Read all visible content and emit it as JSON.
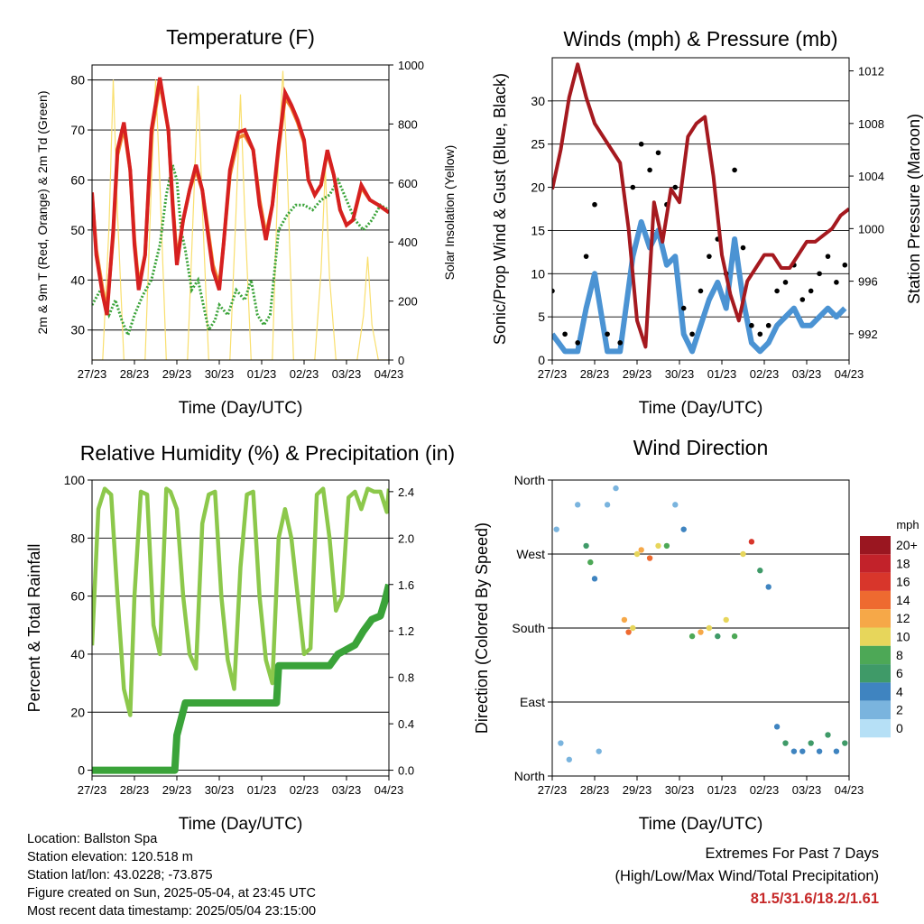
{
  "x_ticks": [
    "27/23",
    "28/23",
    "29/23",
    "30/23",
    "01/23",
    "02/23",
    "03/23",
    "04/23"
  ],
  "colors": {
    "temp_red": "#d62020",
    "temp_orange": "#f0892e",
    "dewpoint_green": "#3aa339",
    "solar_yellow": "#f9df6e",
    "wind_black": "#000000",
    "wind_blue": "#4b93d3",
    "pressure_maroon": "#a5191f",
    "rh_lightgreen": "#8cc84b",
    "rain_green": "#3aa339"
  },
  "chart_data": [
    {
      "type": "line",
      "title": "Temperature (F)",
      "xlabel": "Time (Day/UTC)",
      "ylabel": "2m & 9m T (Red, Orange) & 2m Td (Green)",
      "y2label": "Solar Insolation (Yellow)",
      "ylim": [
        24,
        83
      ],
      "yticks": [
        "30",
        "40",
        "50",
        "60",
        "70",
        "80"
      ],
      "y2lim": [
        0,
        1000
      ],
      "y2ticks": [
        "0",
        "200",
        "400",
        "600",
        "800",
        "1000"
      ],
      "grid": true,
      "series": [
        {
          "name": "2m T",
          "color": "#d62020",
          "x": [
            0,
            0.1,
            0.25,
            0.35,
            0.5,
            0.6,
            0.75,
            0.9,
            1.0,
            1.1,
            1.25,
            1.4,
            1.6,
            1.8,
            1.9,
            2.0,
            2.15,
            2.3,
            2.45,
            2.6,
            2.75,
            2.85,
            3.0,
            3.1,
            3.25,
            3.45,
            3.6,
            3.8,
            3.95,
            4.1,
            4.25,
            4.4,
            4.55,
            4.7,
            4.85,
            5.0,
            5.1,
            5.25,
            5.4,
            5.55,
            5.7,
            5.85,
            6.0,
            6.15,
            6.35,
            6.55,
            6.75,
            7.0
          ],
          "y": [
            57.5,
            45,
            37,
            33,
            50,
            66,
            71.5,
            62,
            47,
            38,
            45,
            70,
            80.5,
            70,
            55,
            43,
            52,
            58,
            63,
            58,
            48,
            42,
            38,
            47,
            62,
            69.5,
            70,
            66,
            55,
            48,
            55,
            67,
            77.5,
            75,
            72,
            68,
            60,
            57,
            59,
            66,
            61,
            54,
            51,
            52,
            59,
            56,
            55,
            53.5
          ]
        },
        {
          "name": "9m T",
          "color": "#f0892e",
          "x": [
            0,
            0.1,
            0.25,
            0.35,
            0.5,
            0.6,
            0.75,
            0.9,
            1.0,
            1.1,
            1.25,
            1.4,
            1.6,
            1.8,
            1.9,
            2.0,
            2.15,
            2.3,
            2.45,
            2.6,
            2.75,
            2.85,
            3.0,
            3.1,
            3.25,
            3.45,
            3.6,
            3.8,
            3.95,
            4.1,
            4.25,
            4.4,
            4.55,
            4.7,
            4.85,
            5.0,
            5.1,
            5.25,
            5.4,
            5.55,
            5.7,
            5.85,
            6.0,
            6.15,
            6.35,
            6.55,
            6.75,
            7.0
          ],
          "y": [
            57,
            46,
            38,
            34,
            49,
            65,
            70.5,
            62,
            48,
            39,
            45,
            69,
            79.5,
            70,
            56,
            44,
            52,
            58,
            62,
            58,
            49,
            43,
            39,
            47,
            61,
            68.5,
            69,
            66,
            56,
            49,
            55,
            66,
            76.5,
            74.5,
            71.5,
            67.5,
            60,
            57,
            59,
            65.5,
            61,
            54,
            51,
            52,
            58.5,
            56,
            55,
            53.5
          ]
        },
        {
          "name": "2m Td",
          "color": "#3aa339",
          "x": [
            0,
            0.2,
            0.4,
            0.55,
            0.7,
            0.85,
            1.0,
            1.2,
            1.4,
            1.6,
            1.75,
            1.9,
            2.0,
            2.1,
            2.2,
            2.35,
            2.5,
            2.6,
            2.75,
            2.9,
            3.0,
            3.2,
            3.4,
            3.6,
            3.75,
            3.9,
            4.05,
            4.2,
            4.4,
            4.6,
            4.8,
            5.0,
            5.2,
            5.4,
            5.6,
            5.8,
            6.0,
            6.2,
            6.4,
            6.6,
            6.8,
            7.0
          ],
          "y": [
            35,
            38,
            33,
            36,
            32,
            29,
            33,
            37,
            40,
            47,
            57,
            63,
            60,
            50,
            46,
            38,
            40,
            36,
            30,
            32,
            35,
            33,
            38,
            36,
            40,
            33,
            31,
            33,
            50,
            53,
            55,
            55,
            54,
            56,
            57,
            60,
            56,
            52,
            50,
            52,
            55,
            54
          ]
        },
        {
          "name": "Solar Insolation",
          "color": "#f9df6e",
          "axis": "y2",
          "x": [
            0,
            0.25,
            0.4,
            0.5,
            0.6,
            0.75,
            0.9,
            1.0,
            1.25,
            1.4,
            1.5,
            1.6,
            1.75,
            1.9,
            2.0,
            2.25,
            2.4,
            2.5,
            2.6,
            2.75,
            2.9,
            3.0,
            3.25,
            3.4,
            3.5,
            3.6,
            3.75,
            3.9,
            4.0,
            4.25,
            4.4,
            4.5,
            4.6,
            4.75,
            4.9,
            5.0,
            5.25,
            5.4,
            5.5,
            5.6,
            5.75,
            5.9,
            6.0,
            6.25,
            6.4,
            6.5,
            6.6,
            6.75,
            6.9,
            7.0
          ],
          "y": [
            0,
            0,
            450,
            950,
            500,
            0,
            0,
            0,
            0,
            600,
            950,
            600,
            0,
            0,
            0,
            0,
            550,
            930,
            520,
            0,
            0,
            0,
            0,
            520,
            900,
            500,
            0,
            0,
            0,
            0,
            700,
            980,
            650,
            0,
            0,
            0,
            0,
            300,
            650,
            280,
            0,
            0,
            0,
            0,
            150,
            350,
            120,
            0,
            0,
            0
          ]
        }
      ]
    },
    {
      "type": "scatter",
      "title": "Winds (mph) & Pressure (mb)",
      "xlabel": "Time (Day/UTC)",
      "ylabel": "Sonic/Prop Wind & Gust (Blue, Black)",
      "y2label": "Station Pressure (Maroon)",
      "ylim": [
        0,
        35
      ],
      "yticks": [
        "0",
        "5",
        "10",
        "15",
        "20",
        "25",
        "30"
      ],
      "y2lim": [
        990,
        1013
      ],
      "y2ticks": [
        "992",
        "996",
        "1000",
        "1004",
        "1008",
        "1012"
      ],
      "grid": true,
      "series": [
        {
          "name": "Gust",
          "color": "#000000",
          "x": [
            0,
            0.3,
            0.6,
            0.8,
            1.0,
            1.3,
            1.6,
            1.9,
            2.1,
            2.3,
            2.5,
            2.7,
            2.9,
            3.1,
            3.3,
            3.5,
            3.7,
            3.9,
            4.1,
            4.3,
            4.5,
            4.7,
            4.9,
            5.1,
            5.3,
            5.5,
            5.7,
            5.9,
            6.1,
            6.3,
            6.5,
            6.7,
            6.9
          ],
          "y": [
            8,
            3,
            2,
            12,
            18,
            3,
            2,
            20,
            25,
            22,
            24,
            18,
            20,
            6,
            3,
            8,
            12,
            14,
            10,
            22,
            13,
            4,
            3,
            4,
            8,
            9,
            11,
            7,
            8,
            10,
            12,
            9,
            11
          ]
        },
        {
          "name": "Sonic/Prop Wind",
          "color": "#4b93d3",
          "x": [
            0,
            0.3,
            0.6,
            0.8,
            1.0,
            1.3,
            1.6,
            1.9,
            2.1,
            2.3,
            2.5,
            2.7,
            2.9,
            3.1,
            3.3,
            3.5,
            3.7,
            3.9,
            4.1,
            4.3,
            4.5,
            4.7,
            4.9,
            5.1,
            5.3,
            5.5,
            5.7,
            5.9,
            6.1,
            6.3,
            6.5,
            6.7,
            6.9
          ],
          "y": [
            3,
            1,
            1,
            6,
            10,
            1,
            1,
            12,
            16,
            13,
            15,
            11,
            12,
            3,
            1,
            4,
            7,
            9,
            6,
            14,
            7,
            2,
            1,
            2,
            4,
            5,
            6,
            4,
            4,
            5,
            6,
            5,
            6
          ]
        },
        {
          "name": "Station Pressure",
          "color": "#a5191f",
          "axis": "y2",
          "x": [
            0,
            0.2,
            0.4,
            0.6,
            0.8,
            1.0,
            1.2,
            1.4,
            1.6,
            1.8,
            2.0,
            2.2,
            2.4,
            2.6,
            2.8,
            3.0,
            3.2,
            3.4,
            3.6,
            3.8,
            4.0,
            4.2,
            4.4,
            4.6,
            4.8,
            5.0,
            5.2,
            5.4,
            5.6,
            5.8,
            6.0,
            6.2,
            6.4,
            6.6,
            6.8,
            7.0
          ],
          "y": [
            1003,
            1006,
            1010,
            1012.5,
            1010,
            1008,
            1007,
            1006,
            1005,
            1000,
            993,
            991,
            1002,
            999,
            1003,
            1002,
            1007,
            1008,
            1008.5,
            1004,
            998,
            995,
            993,
            996,
            997,
            998,
            998,
            997,
            997,
            998,
            999,
            999,
            999.5,
            1000,
            1001,
            1001.5
          ]
        }
      ]
    },
    {
      "type": "line",
      "title": "Relative Humidity (%) & Precipitation (in)",
      "xlabel": "Time (Day/UTC)",
      "ylabel": "Percent & Total Rainfall",
      "ylim": [
        -2,
        100
      ],
      "yticks": [
        "0",
        "20",
        "40",
        "60",
        "80",
        "100"
      ],
      "y2lim": [
        -0.05,
        2.5
      ],
      "y2ticks": [
        "0.0",
        "0.4",
        "0.8",
        "1.2",
        "1.6",
        "2.0",
        "2.4"
      ],
      "grid": true,
      "series": [
        {
          "name": "Relative Humidity",
          "color": "#8cc84b",
          "x": [
            0,
            0.15,
            0.3,
            0.45,
            0.6,
            0.75,
            0.9,
            1.0,
            1.15,
            1.3,
            1.45,
            1.6,
            1.75,
            1.85,
            2.0,
            2.15,
            2.3,
            2.45,
            2.6,
            2.75,
            2.9,
            3.05,
            3.2,
            3.35,
            3.5,
            3.65,
            3.8,
            3.95,
            4.1,
            4.25,
            4.4,
            4.55,
            4.7,
            4.85,
            5.0,
            5.15,
            5.3,
            5.45,
            5.6,
            5.75,
            5.9,
            6.05,
            6.2,
            6.35,
            6.5,
            6.65,
            6.8,
            6.95,
            7.0
          ],
          "y": [
            43,
            90,
            97,
            95,
            60,
            28,
            19,
            60,
            96,
            95,
            50,
            40,
            97,
            96,
            90,
            60,
            40,
            35,
            85,
            95,
            96,
            60,
            38,
            28,
            70,
            95,
            96,
            60,
            38,
            30,
            80,
            90,
            80,
            60,
            40,
            42,
            95,
            97,
            80,
            55,
            60,
            94,
            96,
            90,
            97,
            96,
            96,
            89,
            97
          ]
        },
        {
          "name": "Total Precipitation",
          "color": "#3aa339",
          "axis": "y2",
          "x": [
            0,
            1.95,
            2.0,
            2.2,
            3.5,
            4.35,
            4.4,
            5.6,
            5.8,
            6.2,
            6.4,
            6.6,
            6.8,
            6.9,
            7.0
          ],
          "y": [
            0,
            0,
            0.3,
            0.58,
            0.58,
            0.58,
            0.9,
            0.9,
            1.0,
            1.08,
            1.2,
            1.3,
            1.33,
            1.45,
            1.6
          ]
        }
      ]
    },
    {
      "type": "scatter",
      "title": "Wind Direction",
      "xlabel": "Time (Day/UTC)",
      "ylabel": "Direction (Colored By Speed)",
      "ylim": [
        0,
        360
      ],
      "yticks": [
        "North",
        "East",
        "South",
        "West",
        "North"
      ],
      "grid": true,
      "colorbar": {
        "unit": "mph",
        "labels": [
          "20+",
          "18",
          "16",
          "14",
          "12",
          "10",
          "8",
          "6",
          "4",
          "2",
          "0"
        ],
        "colors": [
          "#9a1620",
          "#c2222a",
          "#d8362b",
          "#ee6a30",
          "#f6a848",
          "#e7d65b",
          "#4da856",
          "#3f9a68",
          "#3f84c0",
          "#7ab4de",
          "#b6e0f6"
        ]
      },
      "points_x": [
        0.1,
        0.2,
        0.4,
        0.6,
        0.8,
        0.9,
        1.0,
        1.1,
        1.3,
        1.5,
        1.7,
        1.8,
        1.9,
        2.0,
        2.1,
        2.3,
        2.5,
        2.7,
        2.9,
        3.1,
        3.3,
        3.5,
        3.7,
        3.9,
        4.1,
        4.3,
        4.5,
        4.7,
        4.9,
        5.1,
        5.3,
        5.5,
        5.7,
        5.9,
        6.1,
        6.3,
        6.5,
        6.7,
        6.9
      ],
      "points_y": [
        300,
        40,
        20,
        330,
        280,
        260,
        240,
        30,
        330,
        350,
        190,
        175,
        180,
        270,
        275,
        265,
        280,
        280,
        330,
        300,
        170,
        175,
        180,
        170,
        190,
        170,
        270,
        285,
        250,
        230,
        60,
        40,
        30,
        30,
        40,
        30,
        50,
        30,
        40
      ],
      "points_speed": [
        2,
        1,
        1,
        2,
        6,
        8,
        4,
        1,
        1,
        2,
        12,
        14,
        10,
        10,
        12,
        14,
        10,
        8,
        2,
        3,
        8,
        12,
        10,
        6,
        10,
        8,
        10,
        16,
        6,
        4,
        4,
        5,
        4,
        3,
        5,
        4,
        6,
        4,
        5
      ]
    }
  ],
  "info": {
    "location": "Location: Ballston Spa",
    "elevation": "Station elevation: 120.518 m",
    "latlon": "Station lat/lon: 43.0228; -73.875",
    "created": "Figure created on Sun, 2025-05-04, at 23:45 UTC",
    "recent": "Most recent data timestamp: 2025/05/04 23:15:00"
  },
  "extremes": {
    "title": "Extremes For Past 7 Days",
    "subtitle": "(High/Low/Max Wind/Total Precipitation)",
    "values": "81.5/31.6/18.2/1.61"
  }
}
